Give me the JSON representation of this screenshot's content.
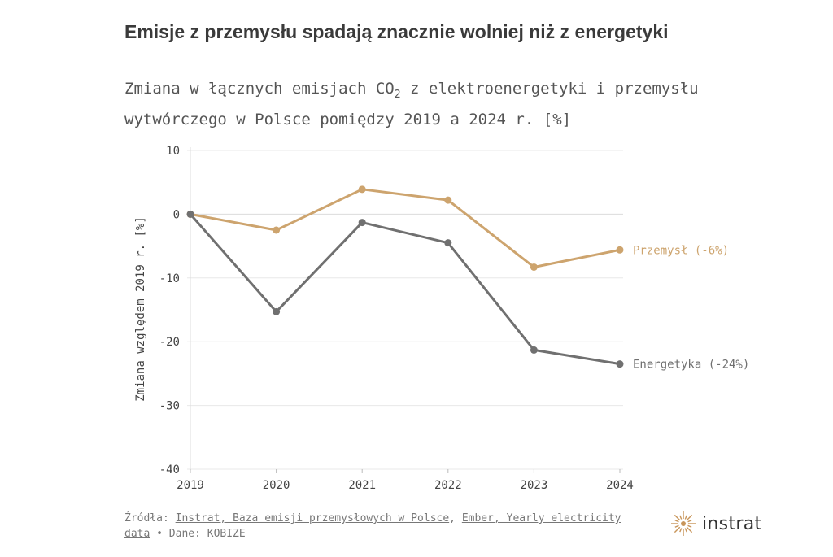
{
  "title": "Emisje z przemysłu spadają znacznie wolniej niż z energetyki",
  "subtitle_part1": "Zmiana w łącznych emisjach CO",
  "subtitle_sub": "2",
  "subtitle_part2": " z elektroenergetyki i przemysłu wytwórczego w Polsce pomiędzy 2019 a 2024 r. [%]",
  "footer": {
    "prefix": "Źródła: ",
    "link1": "Instrat, Baza emisji przemysłowych w Polsce",
    "sep": ", ",
    "link2": "Ember, Yearly electricity data",
    "suffix": " • Dane: KOBIZE"
  },
  "logo": {
    "text": "instrat",
    "icon": "sunburst-logo-icon",
    "color": "#c8955a"
  },
  "chart_data": {
    "type": "line",
    "x": [
      "2019",
      "2020",
      "2021",
      "2022",
      "2023",
      "2024"
    ],
    "ylabel": "Zmiana względem 2019 r. [%]",
    "ylim": [
      -40,
      10
    ],
    "yticks": [
      "10",
      "0",
      "-10",
      "-20",
      "-30",
      "-40"
    ],
    "grid": true,
    "series": [
      {
        "name": "Przemysł (-6%)",
        "color": "#cda46e",
        "values": [
          0,
          -2.5,
          3.9,
          2.2,
          -8.3,
          -5.6
        ]
      },
      {
        "name": "Energetyka (-24%)",
        "color": "#707070",
        "values": [
          0,
          -15.3,
          -1.3,
          -4.5,
          -21.3,
          -23.5
        ]
      }
    ]
  }
}
